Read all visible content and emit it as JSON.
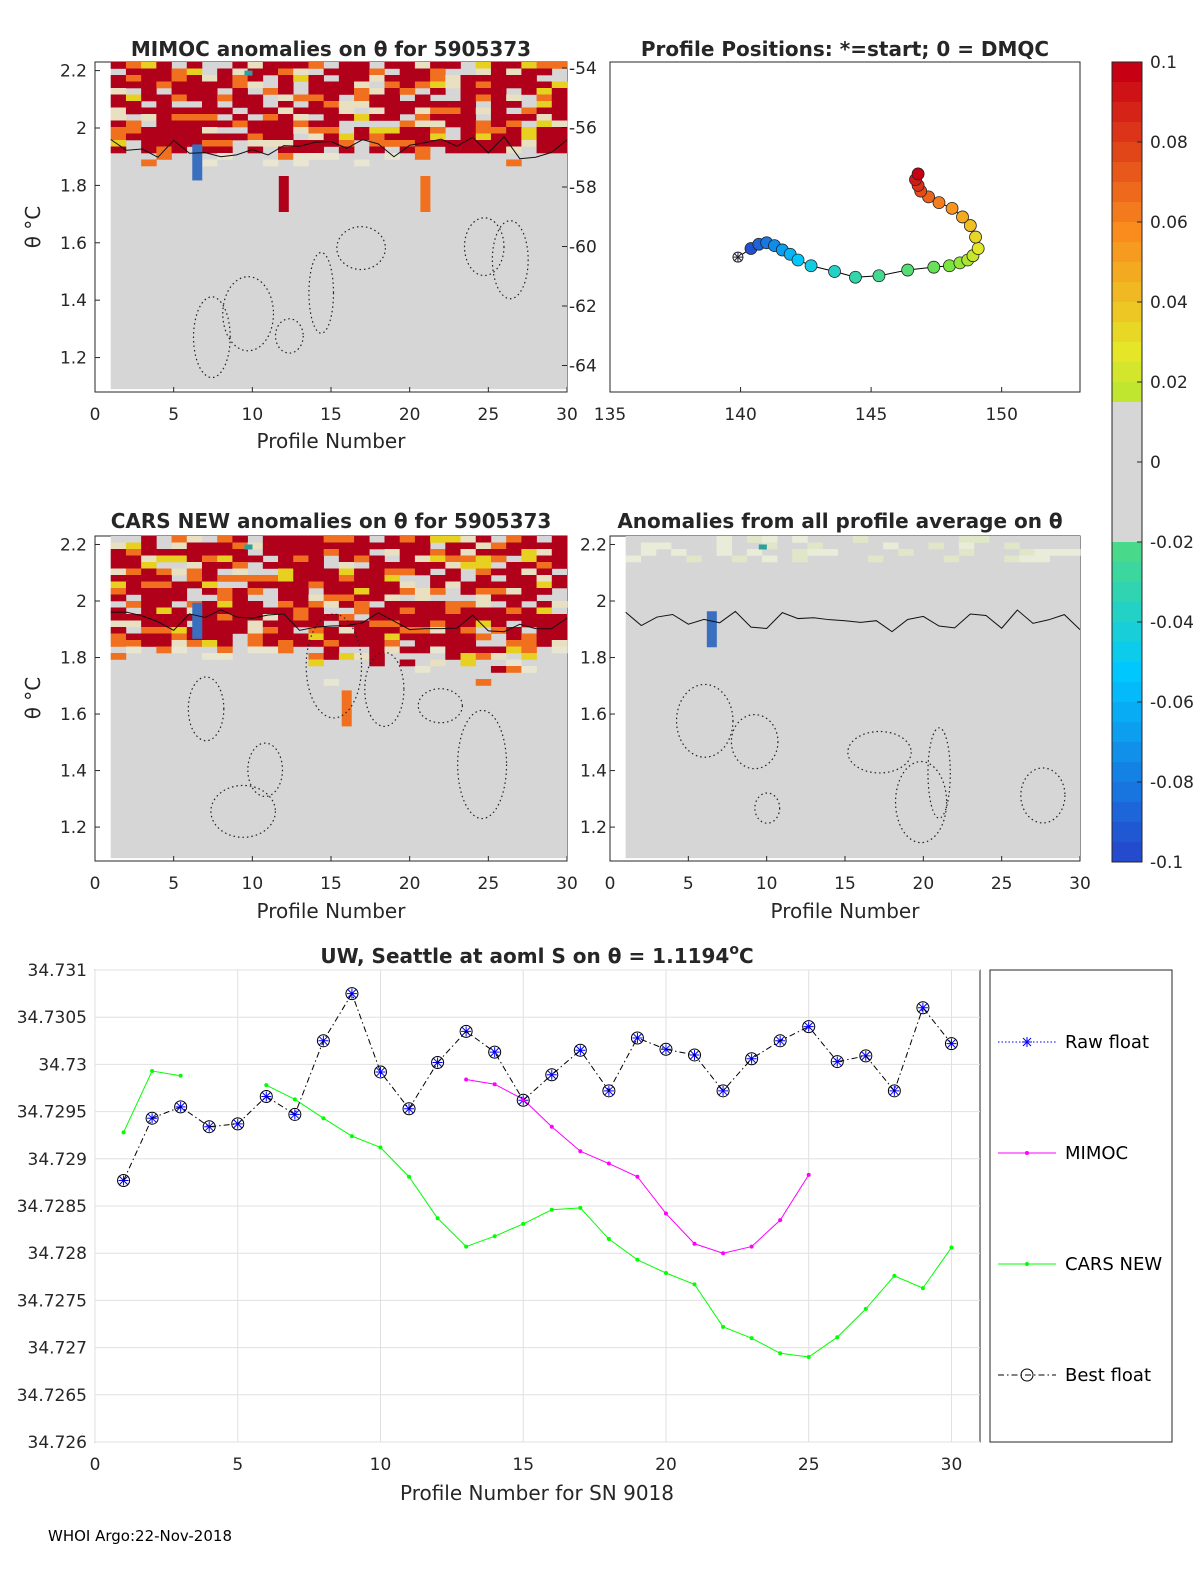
{
  "footer": "WHOI Argo:22-Nov-2018",
  "panels": {
    "mimoc": {
      "title": "MIMOC anomalies on θ  for 5905373",
      "xlabel": "Profile Number",
      "ylabel": "θ °C",
      "x_ticks": [
        "0",
        "5",
        "10",
        "15",
        "20",
        "25",
        "30"
      ],
      "y_ticks": [
        "2.2",
        "2",
        "1.8",
        "1.6",
        "1.4",
        "1.2"
      ],
      "right_ticks": [
        "-54",
        "-56",
        "-58",
        "-60",
        "-62",
        "-64"
      ]
    },
    "positions": {
      "title": "Profile Positions: *=start; 0 = DMQC",
      "x_ticks": [
        "135",
        "140",
        "145",
        "150"
      ]
    },
    "cars": {
      "title": "CARS NEW anomalies on θ for 5905373",
      "xlabel": "Profile Number",
      "ylabel": "θ °C",
      "x_ticks": [
        "0",
        "5",
        "10",
        "15",
        "20",
        "25",
        "30"
      ],
      "y_ticks": [
        "2.2",
        "2",
        "1.8",
        "1.6",
        "1.4",
        "1.2"
      ]
    },
    "allavg": {
      "title": "Anomalies from all profile average on θ",
      "xlabel": "Profile Number",
      "x_ticks": [
        "0",
        "5",
        "10",
        "15",
        "20",
        "25",
        "30"
      ],
      "y_ticks": [
        "2.2",
        "2",
        "1.8",
        "1.6",
        "1.4",
        "1.2"
      ]
    }
  },
  "colorbar": {
    "ticks": [
      "0.1",
      "0.08",
      "0.06",
      "0.04",
      "0.02",
      "0",
      "-0.02",
      "-0.04",
      "-0.06",
      "-0.08",
      "-0.1"
    ],
    "colors": {
      "red": "#b0001a",
      "orange": "#f07020",
      "yellow": "#e8d020",
      "grey": "#d6d6d6",
      "blue": "#3a6fc0",
      "cyan": "#00d8f0",
      "teal": "#2aa0a0"
    }
  },
  "chart_data": [
    {
      "type": "heatmap",
      "title": "MIMOC anomalies on θ  for 5905373",
      "xlabel": "Profile Number",
      "ylabel": "θ °C",
      "xlim": [
        0,
        30
      ],
      "ylim": [
        1.08,
        2.23
      ],
      "right_axis_ticks": [
        -54,
        -56,
        -58,
        -60,
        -62,
        -64
      ],
      "anomaly_hotspots": [
        {
          "profile": 6.5,
          "theta": 1.88,
          "value": -0.09
        },
        {
          "profile": 21,
          "theta": 1.77,
          "value": 0.06
        },
        {
          "profile": 12,
          "theta": 1.77,
          "value": 0.09
        }
      ]
    },
    {
      "type": "scatter",
      "title": "Profile Positions: *=start; 0 = DMQC",
      "xlim": [
        135,
        153
      ],
      "ylim": [
        -65,
        -53.5
      ],
      "x": [
        139.9,
        140.4,
        140.7,
        141.0,
        141.3,
        141.6,
        141.9,
        142.2,
        142.7,
        143.6,
        144.4,
        145.3,
        146.4,
        147.4,
        148.0,
        148.4,
        148.7,
        148.9,
        149.1,
        149.0,
        148.8,
        148.5,
        148.1,
        147.6,
        147.2,
        146.9,
        146.8,
        146.7,
        146.8
      ],
      "y": [
        -60.3,
        -60.0,
        -59.85,
        -59.8,
        -59.9,
        -60.05,
        -60.2,
        -60.4,
        -60.6,
        -60.8,
        -61.0,
        -60.95,
        -60.75,
        -60.65,
        -60.6,
        -60.5,
        -60.4,
        -60.25,
        -60.0,
        -59.6,
        -59.2,
        -58.9,
        -58.6,
        -58.4,
        -58.2,
        -58.0,
        -57.8,
        -57.6,
        -57.4
      ],
      "start_marker": "*"
    },
    {
      "type": "heatmap",
      "title": "CARS NEW anomalies on θ for 5905373",
      "xlabel": "Profile Number",
      "ylabel": "θ °C",
      "xlim": [
        0,
        30
      ],
      "ylim": [
        1.08,
        2.23
      ],
      "anomaly_hotspots": [
        {
          "profile": 6.5,
          "theta": 1.93,
          "value": -0.09
        },
        {
          "profile": 16,
          "theta": 1.62,
          "value": 0.06
        }
      ]
    },
    {
      "type": "heatmap",
      "title": "Anomalies from all profile average on θ",
      "xlabel": "Profile Number",
      "xlim": [
        0,
        30
      ],
      "ylim": [
        1.08,
        2.23
      ],
      "anomaly_hotspots": [
        {
          "profile": 6.5,
          "theta": 1.9,
          "value": -0.09
        }
      ]
    },
    {
      "type": "line",
      "title": "UW, Seattle at aoml S on θ = 1.1194°C",
      "title_main": "UW, Seattle at aoml S on θ = 1.1194",
      "title_sup": "o",
      "title_unit": "C",
      "xlabel": "Profile Number for SN 9018",
      "xlim": [
        0,
        31
      ],
      "ylim": [
        34.726,
        34.731
      ],
      "x_ticks": [
        "0",
        "5",
        "10",
        "15",
        "20",
        "25",
        "30"
      ],
      "y_ticks": [
        "34.731",
        "34.7305",
        "34.73",
        "34.7295",
        "34.729",
        "34.7285",
        "34.728",
        "34.7275",
        "34.727",
        "34.7265",
        "34.726"
      ],
      "series": [
        {
          "name": "Raw float",
          "color": "#0000ff",
          "x": [
            1,
            2,
            3,
            4,
            5,
            6,
            7,
            8,
            9,
            10,
            11,
            12,
            13,
            14,
            15,
            16,
            17,
            18,
            19,
            20,
            21,
            22,
            23,
            24,
            25,
            26,
            27,
            28,
            29,
            30
          ],
          "values": [
            34.72877,
            34.72943,
            34.72955,
            34.72934,
            34.72937,
            34.72966,
            34.72947,
            34.73025,
            34.73075,
            34.72992,
            34.72953,
            34.73002,
            34.73035,
            34.73013,
            34.72962,
            34.72989,
            34.73015,
            34.72972,
            34.73028,
            34.73016,
            34.7301,
            34.72972,
            34.73006,
            34.73025,
            34.7304,
            34.73003,
            34.73009,
            34.72972,
            34.7306,
            34.73022
          ]
        },
        {
          "name": "MIMOC",
          "color": "#ff00ff",
          "x": [
            13,
            14,
            15,
            16,
            17,
            18,
            19,
            20,
            21,
            22,
            23,
            24,
            25
          ],
          "values": [
            34.72984,
            34.72979,
            34.72963,
            34.72934,
            34.72908,
            34.72895,
            34.72881,
            34.72842,
            34.7281,
            34.728,
            34.72807,
            34.72835,
            34.72883
          ]
        },
        {
          "name": "CARS NEW",
          "color": "#00ff00",
          "x": [
            1,
            2,
            3,
            6,
            7,
            8,
            9,
            10,
            11,
            12,
            13,
            14,
            15,
            16,
            17,
            18,
            19,
            20,
            21,
            22,
            23,
            24,
            25,
            26,
            27,
            28,
            29,
            30
          ],
          "values": [
            34.72928,
            34.72993,
            34.72988,
            34.72978,
            34.72963,
            34.72943,
            34.72924,
            34.72912,
            34.72881,
            34.72837,
            34.72807,
            34.72818,
            34.72831,
            34.72846,
            34.72848,
            34.72815,
            34.72793,
            34.72779,
            34.72767,
            34.72722,
            34.7271,
            34.72694,
            34.7269,
            34.72711,
            34.72741,
            34.72776,
            34.72763,
            34.72806
          ]
        },
        {
          "name": "Best float",
          "color": "#000000",
          "x": [
            1,
            2,
            3,
            4,
            5,
            6,
            7,
            8,
            9,
            10,
            11,
            12,
            13,
            14,
            15,
            16,
            17,
            18,
            19,
            20,
            21,
            22,
            23,
            24,
            25,
            26,
            27,
            28,
            29,
            30
          ],
          "values": [
            34.72877,
            34.72943,
            34.72955,
            34.72934,
            34.72937,
            34.72966,
            34.72947,
            34.73025,
            34.73075,
            34.72992,
            34.72953,
            34.73002,
            34.73035,
            34.73013,
            34.72962,
            34.72989,
            34.73015,
            34.72972,
            34.73028,
            34.73016,
            34.7301,
            34.72972,
            34.73006,
            34.73025,
            34.7304,
            34.73003,
            34.73009,
            34.72972,
            34.7306,
            34.73022
          ]
        }
      ]
    }
  ]
}
